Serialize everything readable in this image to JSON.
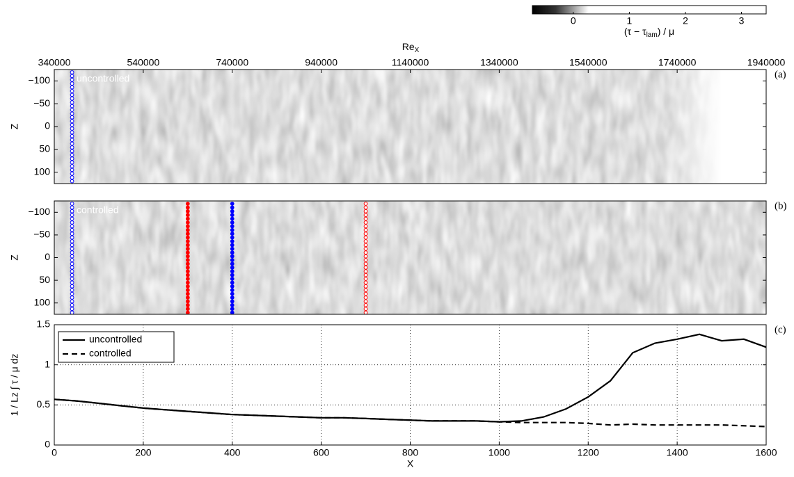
{
  "chart_data": [
    {
      "type": "heatmap",
      "panel_label": "(a)",
      "annotation": "uncontrolled",
      "ylabel": "Z",
      "xlim": [
        0,
        1600
      ],
      "ylim": [
        125,
        -125
      ],
      "yticks": [
        {
          "value": -100,
          "label": "−100"
        },
        {
          "value": -50,
          "label": "−50"
        },
        0,
        50,
        100
      ],
      "x2label": {
        "base": "Re",
        "sub": "X"
      },
      "x2lim": [
        340000,
        1940000
      ],
      "x2ticks": [
        340000,
        540000,
        740000,
        940000,
        1140000,
        1340000,
        1540000,
        1740000,
        1940000
      ],
      "colorbar": {
        "label": [
          "(τ − τ",
          "lam",
          ") / μ"
        ],
        "lim": [
          -0.73,
          3.44
        ],
        "ticks": [
          0,
          1,
          2,
          3
        ]
      },
      "markers": [
        {
          "x": 40,
          "color": "#0000ff",
          "filled": false
        }
      ]
    },
    {
      "type": "heatmap",
      "panel_label": "(b)",
      "annotation": "controlled",
      "ylabel": "Z",
      "xlim": [
        0,
        1600
      ],
      "ylim": [
        125,
        -125
      ],
      "yticks": [
        {
          "value": -100,
          "label": "−100"
        },
        {
          "value": -50,
          "label": "−50"
        },
        0,
        50,
        100
      ],
      "markers": [
        {
          "x": 40,
          "color": "#0000ff",
          "filled": false
        },
        {
          "x": 300,
          "color": "#ff0000",
          "filled": true
        },
        {
          "x": 400,
          "color": "#0000ff",
          "filled": true
        },
        {
          "x": 700,
          "color": "#ff0000",
          "filled": false
        }
      ]
    },
    {
      "type": "line",
      "panel_label": "(c)",
      "xlabel": "X",
      "ylabel": "1 / Lz  ∫ τ / μ dz",
      "xlim": [
        0,
        1600
      ],
      "ylim": [
        0,
        1.5
      ],
      "xticks": [
        0,
        200,
        400,
        600,
        800,
        1000,
        1200,
        1400,
        1600
      ],
      "yticks": [
        0,
        0.5,
        1,
        1.5
      ],
      "grid": true,
      "legend": "upper left",
      "x": [
        0,
        50,
        100,
        150,
        200,
        250,
        300,
        350,
        400,
        450,
        500,
        550,
        600,
        650,
        700,
        750,
        800,
        850,
        900,
        950,
        1000,
        1050,
        1100,
        1150,
        1200,
        1250,
        1300,
        1350,
        1400,
        1450,
        1500,
        1550,
        1600
      ],
      "series": [
        {
          "name": "uncontrolled",
          "color": "#000000",
          "dash": "solid",
          "values": [
            0.57,
            0.55,
            0.52,
            0.49,
            0.46,
            0.44,
            0.42,
            0.4,
            0.38,
            0.37,
            0.36,
            0.35,
            0.34,
            0.34,
            0.33,
            0.32,
            0.31,
            0.3,
            0.3,
            0.3,
            0.29,
            0.3,
            0.35,
            0.45,
            0.6,
            0.8,
            1.15,
            1.27,
            1.32,
            1.38,
            1.3,
            1.32,
            1.22
          ]
        },
        {
          "name": "controlled",
          "color": "#000000",
          "dash": "dashed",
          "values": [
            0.57,
            0.55,
            0.52,
            0.49,
            0.46,
            0.44,
            0.42,
            0.4,
            0.38,
            0.37,
            0.36,
            0.35,
            0.34,
            0.34,
            0.33,
            0.32,
            0.31,
            0.3,
            0.3,
            0.3,
            0.29,
            0.28,
            0.28,
            0.28,
            0.27,
            0.25,
            0.26,
            0.25,
            0.25,
            0.25,
            0.25,
            0.24,
            0.23
          ]
        }
      ]
    }
  ]
}
